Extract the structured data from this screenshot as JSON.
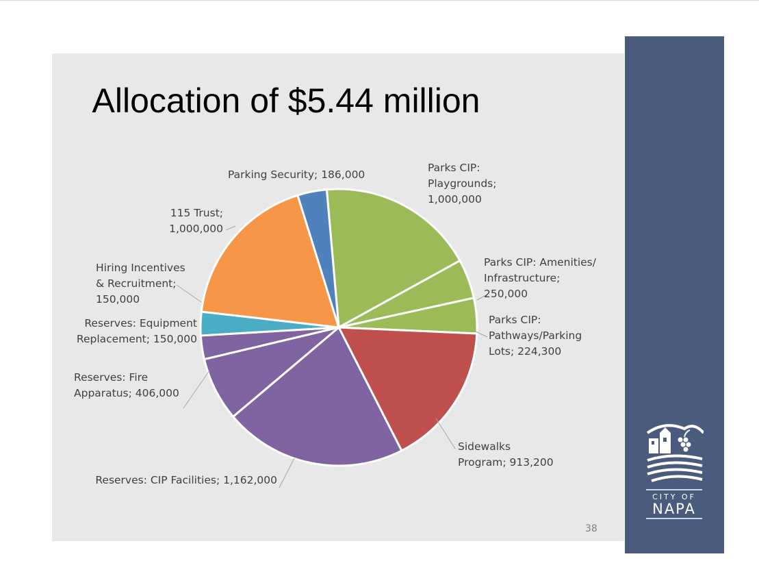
{
  "slide": {
    "title": "Allocation of $5.44 million",
    "page_number": "38"
  },
  "logo": {
    "line1": "CITY OF",
    "line2": "NAPA"
  },
  "colors": {
    "slide_background": "#e8e8e8",
    "sidebar": "#4a5b7e"
  },
  "chart_data": {
    "type": "pie",
    "title": "Allocation of $5.44 million",
    "slices": [
      {
        "label_lines": [
          "Parks CIP:",
          "Playgrounds;",
          "1,000,000"
        ],
        "value": 1000000,
        "color": "#9bbb59"
      },
      {
        "label_lines": [
          "Parks CIP: Amenities/",
          "Infrastructure;",
          "250,000"
        ],
        "value": 250000,
        "color": "#9bbb59"
      },
      {
        "label_lines": [
          "Parks CIP:",
          "Pathways/Parking",
          "Lots;  224,300"
        ],
        "value": 224300,
        "color": "#9bbb59"
      },
      {
        "label_lines": [
          "Sidewalks",
          "Program;  913,200"
        ],
        "value": 913200,
        "color": "#c0504d"
      },
      {
        "label_lines": [
          "Reserves: CIP Facilities;  1,162,000"
        ],
        "value": 1162000,
        "color": "#8064a2"
      },
      {
        "label_lines": [
          "Reserves: Fire",
          "Apparatus;  406,000"
        ],
        "value": 406000,
        "color": "#8064a2"
      },
      {
        "label_lines": [
          "Reserves: Equipment",
          "Replacement;  150,000"
        ],
        "value": 150000,
        "color": "#8064a2"
      },
      {
        "label_lines": [
          "Hiring Incentives",
          "& Recruitment;",
          "150,000"
        ],
        "value": 150000,
        "color": "#4bacc6"
      },
      {
        "label_lines": [
          "115 Trust;",
          "1,000,000"
        ],
        "value": 1000000,
        "color": "#f79646"
      },
      {
        "label_lines": [
          "Parking Security;  186,000"
        ],
        "value": 186000,
        "color": "#4f81bd"
      }
    ]
  }
}
